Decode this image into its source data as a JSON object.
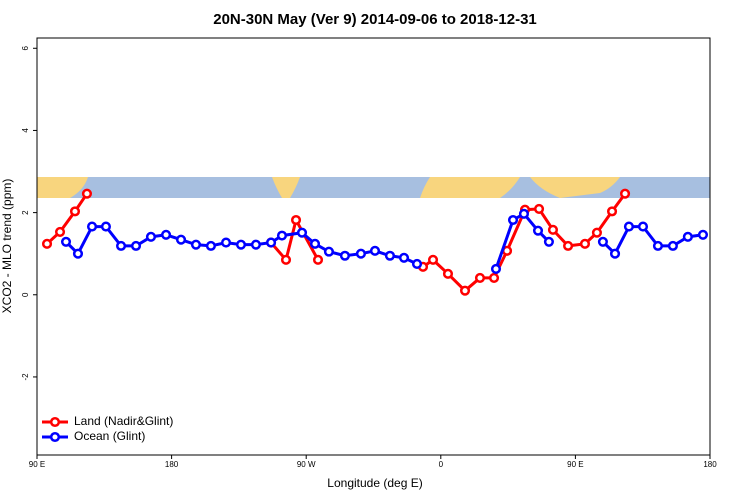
{
  "chart_data": {
    "type": "line",
    "title": "20N-30N May (Ver 9)   2014-09-06 to 2018-12-31",
    "xlabel": "Longitude (deg E)",
    "ylabel": "XCO2 - MLO trend (ppm)",
    "xlim": [
      90,
      540
    ],
    "xticks": [
      {
        "value": 90,
        "label": "90 E"
      },
      180,
      {
        "value": 270,
        "label": "90 W"
      },
      {
        "value": 360,
        "label": "0"
      },
      {
        "value": 450,
        "label": "90 E"
      },
      {
        "value": 540,
        "label": "180"
      }
    ],
    "ylim": [
      -3.9,
      6.25
    ],
    "yticks": [
      -2,
      0,
      2,
      4,
      6
    ],
    "legend": "bottom-left",
    "series": [
      {
        "name": "Land (Nadir&Glint)",
        "color": "#ff0000",
        "x": [
          96.7,
          105.4,
          115.4,
          123.4,
          null,
          246.5,
          256.5,
          263.2,
          277.9,
          null,
          348.1,
          354.8,
          364.8,
          376.2,
          386.2,
          395.6,
          404.3,
          416.3,
          425.7,
          435.0,
          445.1,
          456.4,
          464.4,
          474.5,
          483.2
        ],
        "values": [
          1.24,
          1.53,
          2.03,
          2.46,
          null,
          1.27,
          0.85,
          1.82,
          0.85,
          null,
          0.68,
          0.85,
          0.51,
          0.1,
          0.41,
          0.41,
          1.07,
          2.07,
          2.09,
          1.58,
          1.19,
          1.24,
          1.51,
          2.03,
          2.46
        ]
      },
      {
        "name": "Ocean (Glint)",
        "color": "#0000ff",
        "x": [
          109.4,
          117.4,
          126.8,
          136.1,
          146.2,
          156.2,
          166.2,
          176.3,
          186.3,
          196.3,
          206.3,
          216.4,
          226.4,
          236.4,
          246.5,
          253.8,
          267.2,
          275.9,
          285.2,
          295.9,
          306.6,
          316.0,
          326.0,
          335.4,
          344.1,
          null,
          396.9,
          408.3,
          415.6,
          425.0,
          432.3,
          null,
          468.4,
          476.5,
          485.8,
          495.2,
          505.2,
          515.2,
          525.2,
          535.3
        ],
        "values": [
          1.29,
          1.0,
          1.66,
          1.66,
          1.19,
          1.19,
          1.41,
          1.46,
          1.34,
          1.22,
          1.19,
          1.27,
          1.22,
          1.22,
          1.27,
          1.44,
          1.51,
          1.24,
          1.05,
          0.95,
          1.0,
          1.07,
          0.95,
          0.9,
          0.75,
          null,
          0.63,
          1.82,
          1.97,
          1.56,
          1.29,
          null,
          1.29,
          1.0,
          1.66,
          1.66,
          1.19,
          1.19,
          1.41,
          1.46
        ]
      }
    ]
  }
}
